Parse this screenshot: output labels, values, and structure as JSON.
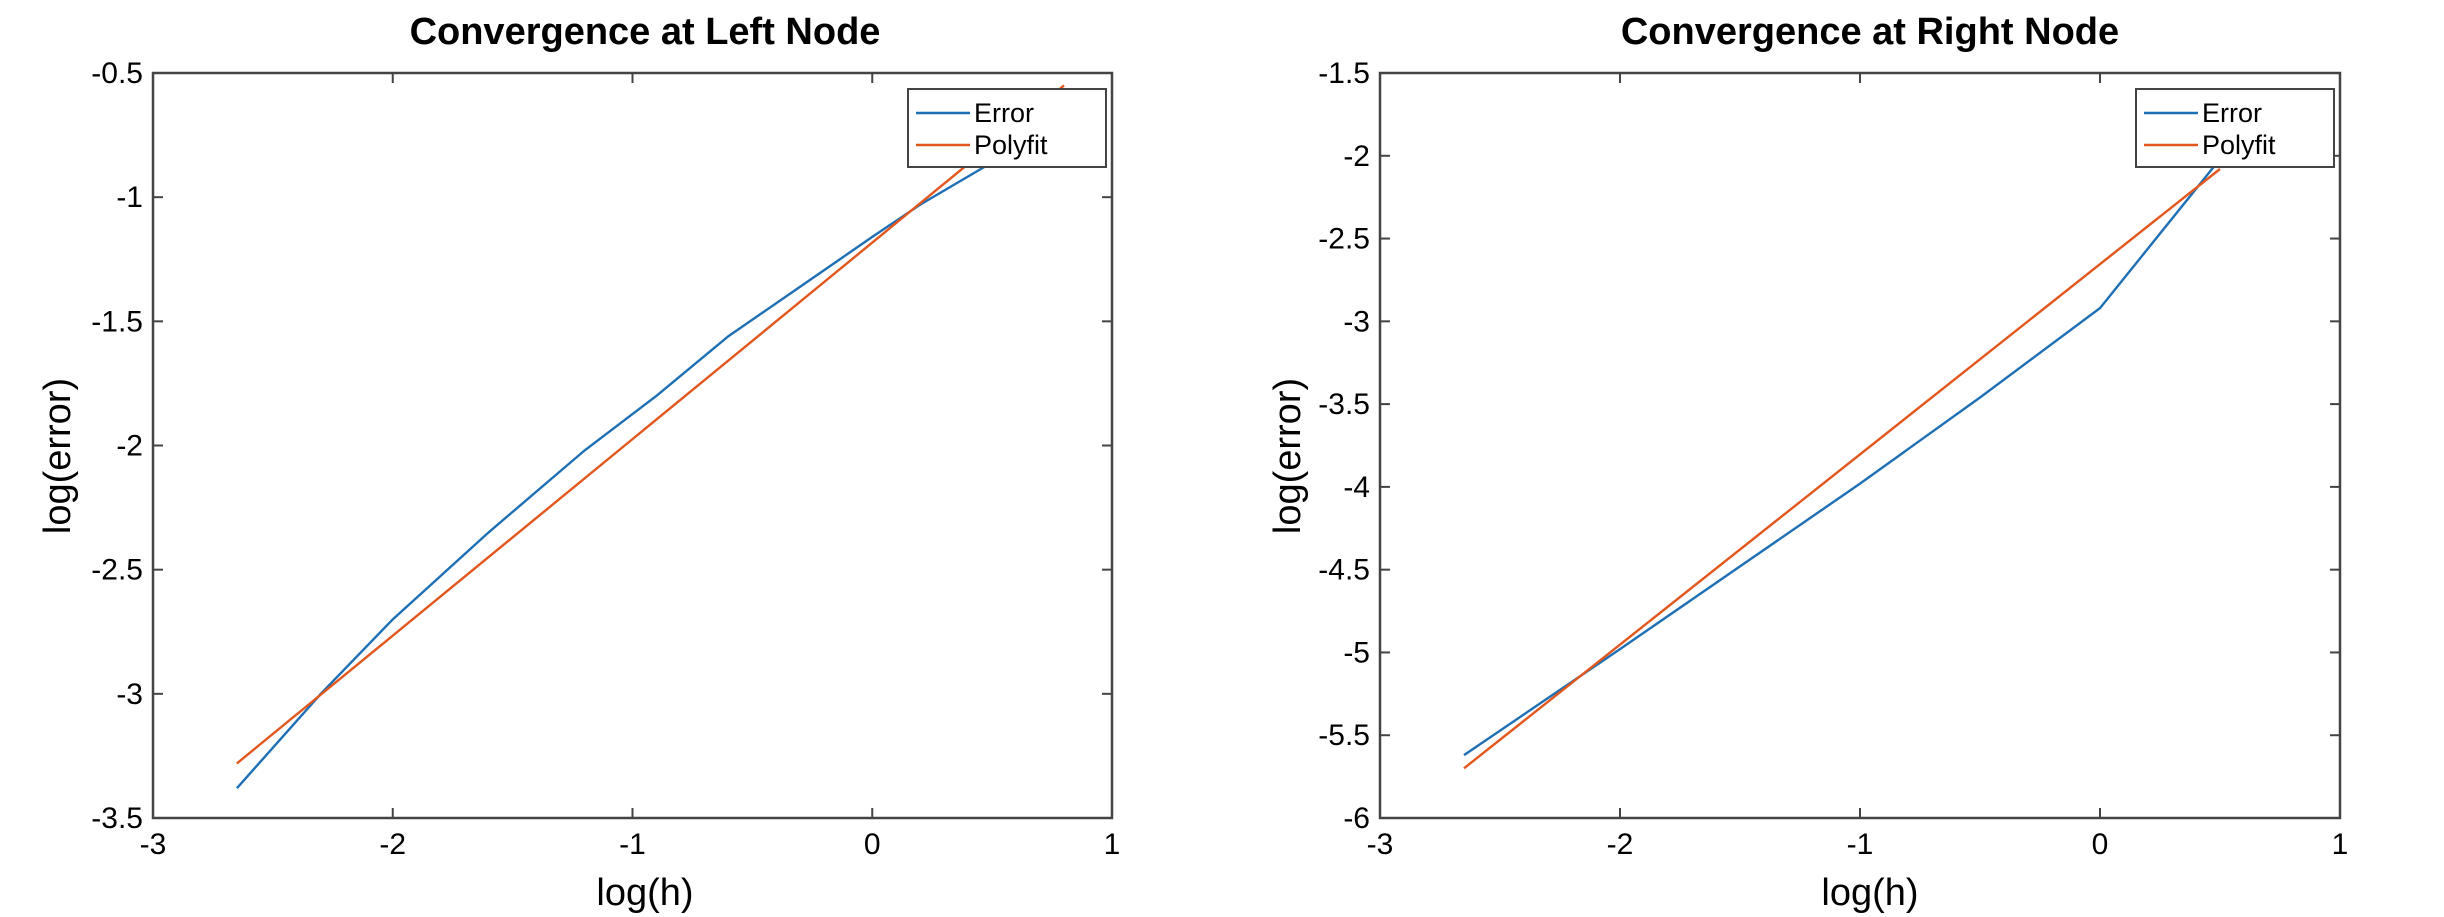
{
  "colors": {
    "error": "#1f6fb5",
    "polyfit": "#e2571d",
    "axis": "#444444"
  },
  "chart_data": [
    {
      "type": "line",
      "title": "Convergence at Left Node",
      "xlabel": "log(h)",
      "ylabel": "log(error)",
      "xlim": [
        -3,
        1
      ],
      "ylim": [
        -3.5,
        -0.5
      ],
      "xticks": [
        -3,
        -2,
        -1,
        0,
        1
      ],
      "xtick_labels": [
        "-3",
        "-2",
        "-1",
        "0",
        "1"
      ],
      "yticks": [
        -3.5,
        -3,
        -2.5,
        -2,
        -1.5,
        -1,
        -0.5
      ],
      "ytick_labels": [
        "-3.5",
        "-3",
        "-2.5",
        "-2",
        "-1.5",
        "-1",
        "-0.5"
      ],
      "grid": false,
      "legend": "top-right",
      "series": [
        {
          "name": "Error",
          "color_key": "error",
          "x": [
            -2.65,
            -2.3,
            -2.0,
            -1.6,
            -1.2,
            -0.9,
            -0.6,
            -0.3,
            0.0,
            0.2,
            0.5
          ],
          "y": [
            -3.38,
            -3.0,
            -2.7,
            -2.35,
            -2.02,
            -1.8,
            -1.56,
            -1.36,
            -1.16,
            -1.03,
            -0.86
          ]
        },
        {
          "name": "Polyfit",
          "color_key": "polyfit",
          "x": [
            -2.65,
            0.8
          ],
          "y": [
            -3.28,
            -0.55
          ]
        }
      ]
    },
    {
      "type": "line",
      "title": "Convergence at Right Node",
      "xlabel": "log(h)",
      "ylabel": "log(error)",
      "xlim": [
        -3,
        1
      ],
      "ylim": [
        -6,
        -1.5
      ],
      "xticks": [
        -3,
        -2,
        -1,
        0,
        1
      ],
      "xtick_labels": [
        "-3",
        "-2",
        "-1",
        "0",
        "1"
      ],
      "yticks": [
        -6,
        -5.5,
        -5,
        -4.5,
        -4,
        -3.5,
        -3,
        -2.5,
        -2,
        -1.5
      ],
      "ytick_labels": [
        "-6",
        "-5.5",
        "-5",
        "-4.5",
        "-4",
        "-3.5",
        "-3",
        "-2.5",
        "-2",
        "-1.5"
      ],
      "grid": false,
      "legend": "top-right",
      "series": [
        {
          "name": "Error",
          "color_key": "error",
          "x": [
            -2.65,
            -2.0,
            -1.5,
            -1.0,
            -0.5,
            0.0,
            0.5
          ],
          "y": [
            -5.62,
            -4.98,
            -4.48,
            -3.98,
            -3.46,
            -2.92,
            -2.02
          ]
        },
        {
          "name": "Polyfit",
          "color_key": "polyfit",
          "x": [
            -2.65,
            0.5
          ],
          "y": [
            -5.7,
            -2.08
          ]
        }
      ]
    }
  ]
}
